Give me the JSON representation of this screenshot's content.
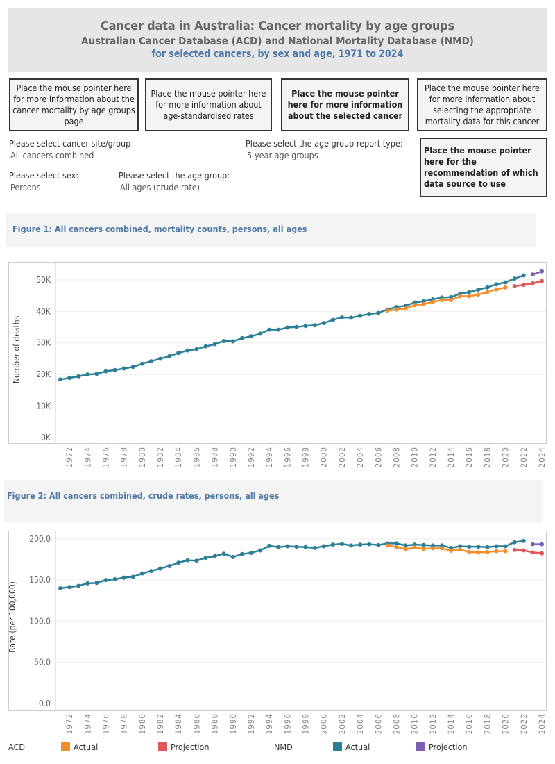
{
  "header": {
    "title": "Cancer data in Australia: Cancer mortality by age groups",
    "subtitle": "Australian Cancer Database (ACD) and National Mortality Database (NMD)",
    "subtitle2": "for selected cancers, by sex and age, 1971 to 2024"
  },
  "info_boxes": [
    "Place the mouse pointer here for more information about the cancer mortality by age  groups page",
    "Place the mouse pointer here for more information about age-standardised rates",
    "Place the mouse pointer here for more information about the selected cancer",
    "Place the mouse pointer here for more information about selecting the appropriate mortality data for this cancer",
    "Place the mouse pointer here for the recommendation of which data source to use"
  ],
  "filters": {
    "cancer_site": {
      "label": "Please select cancer site/group",
      "value": "All cancers combined"
    },
    "report_type": {
      "label": "Please select the age group report type:",
      "value": "5-year age groups"
    },
    "sex": {
      "label": "Please select sex:",
      "value": "Persons"
    },
    "age_group": {
      "label": "Please select the age group:",
      "value": "All ages (crude rate)"
    }
  },
  "legend": {
    "acd": "ACD",
    "nmd": "NMD",
    "actual": "Actual",
    "projection": "Projection"
  },
  "colors": {
    "acd_actual": "#f28e2b",
    "acd_projection": "#e15759",
    "nmd_actual": "#2a7f97",
    "nmd_projection": "#7b5fb0",
    "title_blue": "#4e79a7"
  },
  "chart_data": [
    {
      "type": "line",
      "title": "Figure 1: All cancers combined, mortality counts, persons, all ages",
      "xlabel": "",
      "ylabel": "Number of deaths",
      "ylim": [
        0,
        55700
      ],
      "xlim": [
        1971,
        2024
      ],
      "grid": true,
      "yticks": [
        0,
        10000,
        20000,
        30000,
        40000,
        50000
      ],
      "ytick_labels": [
        "0K",
        "10K",
        "20K",
        "30K",
        "40K",
        "50K"
      ],
      "xticks": [
        1972,
        1974,
        1976,
        1978,
        1980,
        1982,
        1984,
        1986,
        1988,
        1990,
        1992,
        1994,
        1996,
        1998,
        2000,
        2002,
        2004,
        2006,
        2008,
        2010,
        2012,
        2014,
        2016,
        2018,
        2020,
        2022,
        2024
      ],
      "series": [
        {
          "name": "NMD Actual",
          "color": "#2a7f97",
          "start": 1971,
          "values": [
            18400,
            18900,
            19400,
            20000,
            20200,
            21000,
            21400,
            21900,
            22400,
            23400,
            24200,
            25000,
            25800,
            26800,
            27600,
            28000,
            28900,
            29600,
            30600,
            30500,
            31500,
            32100,
            32900,
            34200,
            34200,
            34900,
            35100,
            35400,
            35600,
            36300,
            37300,
            38100,
            38000,
            38600,
            39200,
            39500,
            40600,
            41400,
            41800,
            42800,
            43200,
            43800,
            44400,
            44500,
            45600,
            46100,
            46900,
            47600,
            48600,
            49200,
            50400,
            51400
          ]
        },
        {
          "name": "NMD Projection",
          "color": "#7b5fb0",
          "start": 2023,
          "values": [
            51700,
            52700
          ]
        },
        {
          "name": "ACD Actual",
          "color": "#f28e2b",
          "start": 2007,
          "values": [
            40200,
            40600,
            40900,
            42000,
            42300,
            43000,
            43600,
            43600,
            44800,
            44800,
            45300,
            46100,
            47000,
            47600
          ]
        },
        {
          "name": "ACD Projection",
          "color": "#e15759",
          "start": 2021,
          "values": [
            48000,
            48400,
            48900,
            49600
          ]
        }
      ]
    },
    {
      "type": "line",
      "title": "Figure 2: All cancers combined, crude rates, persons, all ages",
      "xlabel": "",
      "ylabel": "Rate (per 100,000)",
      "ylim": [
        0,
        210
      ],
      "xlim": [
        1971,
        2024
      ],
      "grid": true,
      "yticks": [
        0,
        50,
        100,
        150,
        200
      ],
      "ytick_labels": [
        "0.0",
        "50.0",
        "100.0",
        "150.0",
        "200.0"
      ],
      "xticks": [
        1972,
        1974,
        1976,
        1978,
        1980,
        1982,
        1984,
        1986,
        1988,
        1990,
        1992,
        1994,
        1996,
        1998,
        2000,
        2002,
        2004,
        2006,
        2008,
        2010,
        2012,
        2014,
        2016,
        2018,
        2020,
        2022,
        2024
      ],
      "series": [
        {
          "name": "NMD Actual",
          "color": "#2a7f97",
          "start": 1971,
          "values": [
            140,
            141.5,
            143,
            146,
            146.5,
            150,
            151,
            153,
            154,
            158,
            161,
            164,
            167,
            171,
            174,
            173.5,
            177,
            179,
            182,
            178,
            181.5,
            183,
            186,
            191.5,
            190,
            191,
            190.5,
            190,
            189,
            191,
            193,
            194,
            192,
            193,
            193.5,
            192.5,
            194.5,
            194.5,
            192,
            193,
            192.5,
            192,
            192,
            189,
            191,
            190.5,
            190.5,
            190,
            191,
            191,
            196,
            197.5
          ]
        },
        {
          "name": "NMD Projection",
          "color": "#7b5fb0",
          "start": 2023,
          "values": [
            193.5,
            193.5
          ]
        },
        {
          "name": "ACD Actual",
          "color": "#f28e2b",
          "start": 2007,
          "values": [
            192,
            190,
            187.5,
            189.5,
            188,
            188.5,
            188.5,
            185.5,
            187,
            184,
            183.5,
            184,
            185,
            185
          ]
        },
        {
          "name": "ACD Projection",
          "color": "#e15759",
          "start": 2021,
          "values": [
            186.5,
            186,
            183.5,
            182.5
          ]
        }
      ]
    }
  ]
}
